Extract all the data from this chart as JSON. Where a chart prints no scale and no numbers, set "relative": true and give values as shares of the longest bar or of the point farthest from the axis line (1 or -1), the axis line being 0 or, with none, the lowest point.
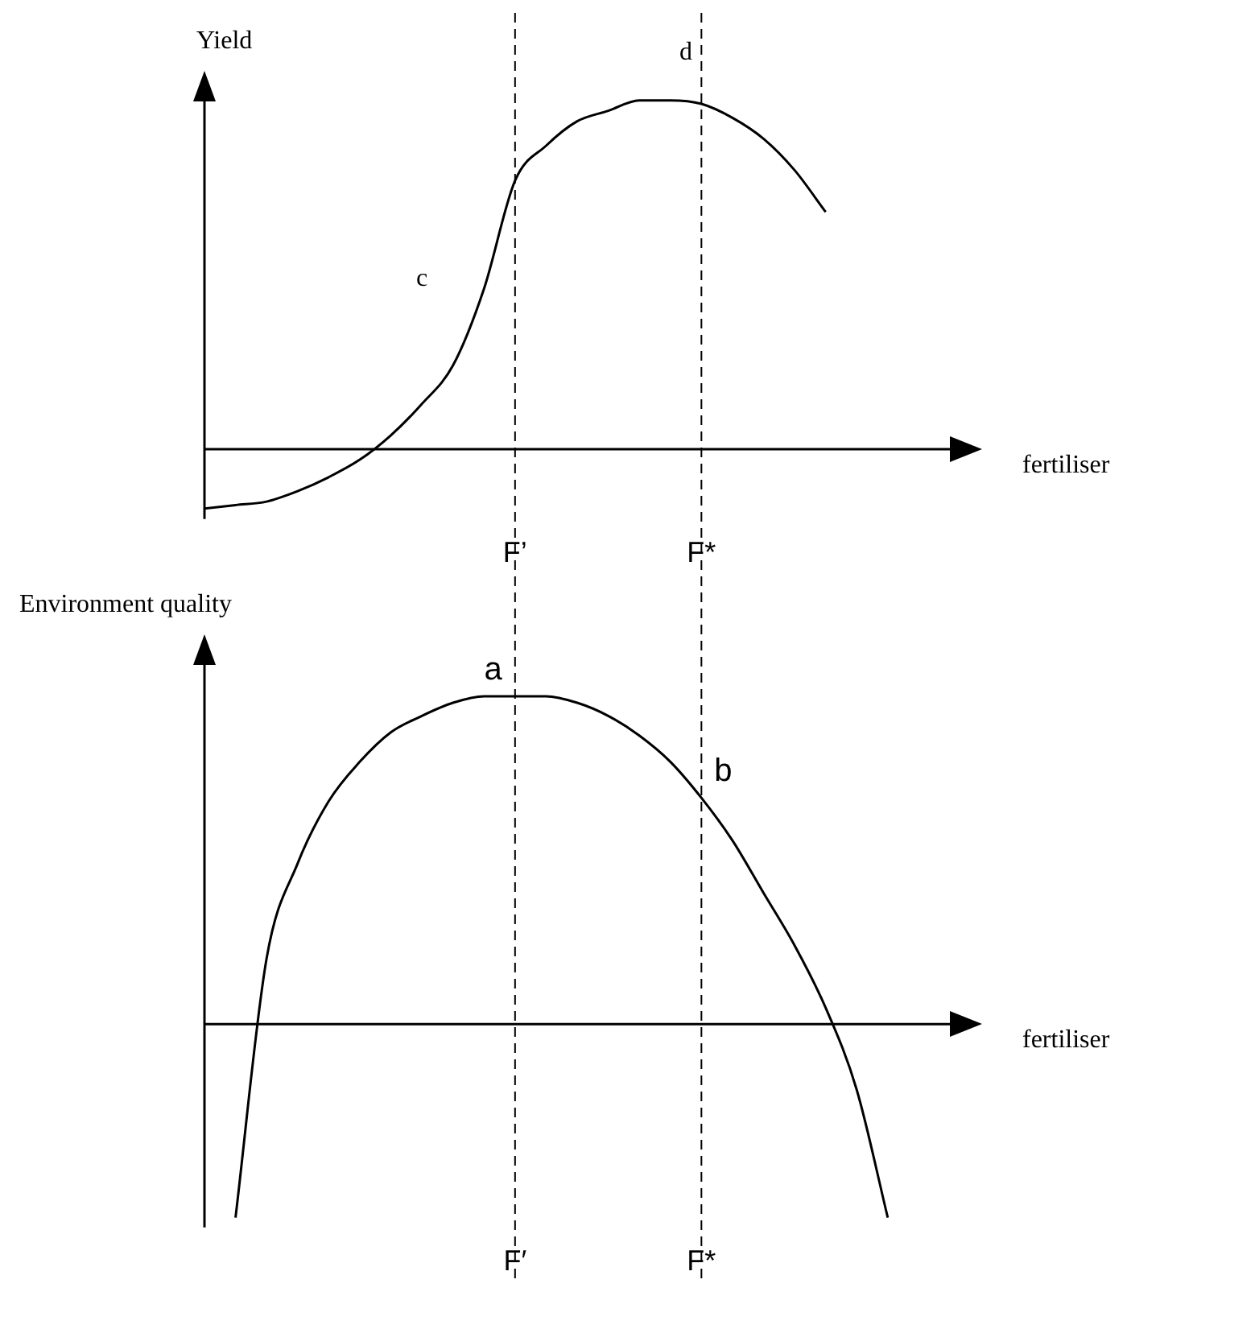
{
  "chart_data": [
    {
      "type": "line",
      "relative": true,
      "ylabel": "Yield",
      "xlabel": "fertiliser",
      "color": "#000000",
      "line_style": "solid",
      "grid": false,
      "legend": false,
      "categories": [
        null,
        null,
        null,
        null,
        null,
        null,
        null,
        null,
        null,
        null,
        "F’",
        null,
        null,
        null,
        null,
        null,
        "F*",
        null,
        null,
        null,
        null,
        null,
        null,
        null,
        null
      ],
      "values": [
        -0.17,
        -0.16,
        -0.15,
        -0.12,
        -0.08,
        -0.03,
        0.04,
        0.13,
        0.24,
        0.46,
        0.77,
        0.87,
        0.94,
        0.97,
        1.0,
        1.0,
        0.99,
        0.95,
        0.89,
        0.8,
        0.68,
        null,
        null,
        null,
        null
      ],
      "ref_lines": [
        {
          "axis": "x",
          "value": "F’",
          "line_style": "dashed"
        },
        {
          "axis": "x",
          "value": "F*",
          "line_style": "dashed"
        }
      ],
      "annotations": [
        "c",
        "d"
      ]
    },
    {
      "type": "line",
      "relative": true,
      "ylabel": "Environment quality",
      "xlabel": "fertiliser",
      "color": "#000000",
      "line_style": "solid",
      "grid": false,
      "legend": false,
      "categories": [
        null,
        null,
        null,
        null,
        null,
        null,
        null,
        null,
        null,
        null,
        "F′",
        null,
        null,
        null,
        null,
        null,
        "F*",
        null,
        null,
        null,
        null,
        null,
        null,
        null,
        null
      ],
      "values": [
        null,
        -0.59,
        0.2,
        0.49,
        0.68,
        0.8,
        0.89,
        0.94,
        0.98,
        1.0,
        1.0,
        1.0,
        0.98,
        0.94,
        0.88,
        0.8,
        0.69,
        0.56,
        0.4,
        0.24,
        0.05,
        -0.2,
        -0.59,
        null,
        null
      ],
      "ref_lines": [
        {
          "axis": "x",
          "value": "F′",
          "line_style": "dashed"
        },
        {
          "axis": "x",
          "value": "F*",
          "line_style": "dashed"
        }
      ],
      "annotations": [
        {
          "text": "a",
          "x": "F′",
          "y": 1.0
        },
        {
          "text": "b",
          "x": "F*",
          "y": 0.69
        }
      ]
    }
  ]
}
